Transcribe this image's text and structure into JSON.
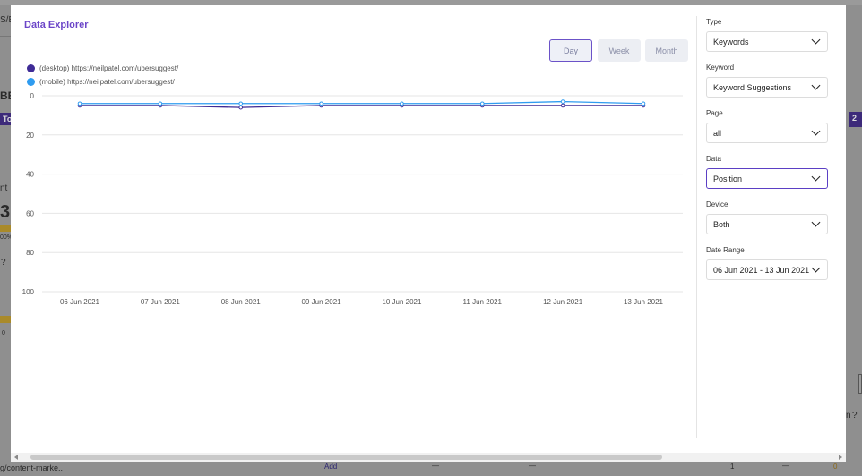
{
  "background": {
    "top_tab": "S/E",
    "heading_fragment": "BE",
    "button_fragment": "To T",
    "label_fragment": "nt",
    "big_number": "3",
    "percent_fragment": "00%",
    "zero_fragment": "0",
    "footer_url": "g/content-marke..",
    "footer_add": "Add",
    "footer_dash_1": "—",
    "footer_dash_2": "—",
    "footer_one": "1",
    "footer_dash_3": "—",
    "footer_zero": "0",
    "right_fragment": "n",
    "right_button": "2"
  },
  "modal": {
    "title": "Data Explorer",
    "range_buttons": [
      "Day",
      "Week",
      "Month"
    ],
    "active_range": "Day",
    "legend": [
      {
        "label": "(desktop) https://neilpatel.com/ubersuggest/",
        "color": "#3f2b96"
      },
      {
        "label": "(mobile) https://neilpatel.com/ubersuggest/",
        "color": "#2f9cf0"
      }
    ],
    "filters": {
      "type": {
        "label": "Type",
        "value": "Keywords"
      },
      "keyword": {
        "label": "Keyword",
        "value": "Keyword Suggestions"
      },
      "page": {
        "label": "Page",
        "value": "all"
      },
      "data": {
        "label": "Data",
        "value": "Position"
      },
      "device": {
        "label": "Device",
        "value": "Both"
      },
      "date_range": {
        "label": "Date Range",
        "value": "06 Jun 2021 - 13 Jun 2021"
      }
    }
  },
  "chart_data": {
    "type": "line",
    "x": [
      "06 Jun 2021",
      "07 Jun 2021",
      "08 Jun 2021",
      "09 Jun 2021",
      "10 Jun 2021",
      "11 Jun 2021",
      "12 Jun 2021",
      "13 Jun 2021"
    ],
    "y_ticks": [
      0,
      20,
      40,
      60,
      80,
      100
    ],
    "ylim": [
      0,
      100
    ],
    "y_reversed": true,
    "grid": true,
    "series": [
      {
        "name": "(desktop) https://neilpatel.com/ubersuggest/",
        "color": "#3f2b96",
        "values": [
          5,
          5,
          6,
          5,
          5,
          5,
          5,
          5
        ]
      },
      {
        "name": "(mobile) https://neilpatel.com/ubersuggest/",
        "color": "#2f9cf0",
        "values": [
          4,
          4,
          4,
          4,
          4,
          4,
          3,
          4
        ]
      }
    ]
  }
}
